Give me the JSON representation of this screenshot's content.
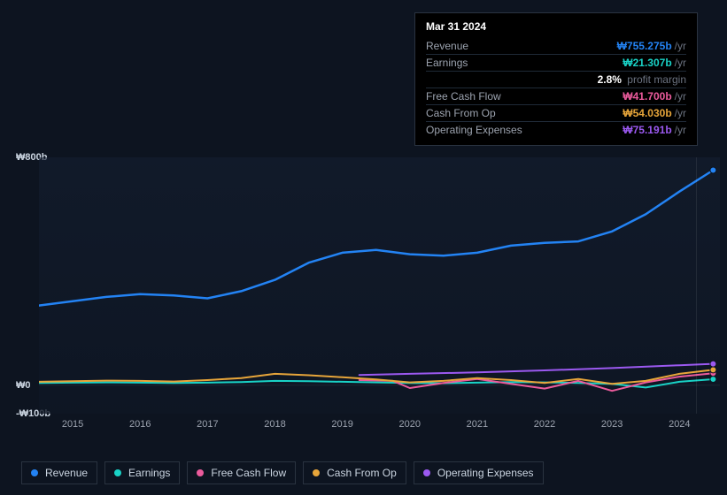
{
  "tooltip": {
    "date": "Mar 31 2024",
    "rows": [
      {
        "label": "Revenue",
        "value": "₩755.275b",
        "unit": "/yr",
        "color": "#2383f4"
      },
      {
        "label": "Earnings",
        "value": "₩21.307b",
        "unit": "/yr",
        "color": "#19d2c6",
        "sub_value": "2.8%",
        "sub_label": "profit margin"
      },
      {
        "label": "Free Cash Flow",
        "value": "₩41.700b",
        "unit": "/yr",
        "color": "#eb5b9c"
      },
      {
        "label": "Cash From Op",
        "value": "₩54.030b",
        "unit": "/yr",
        "color": "#e7a53a"
      },
      {
        "label": "Operating Expenses",
        "value": "₩75.191b",
        "unit": "/yr",
        "color": "#9b59f0"
      }
    ]
  },
  "chart": {
    "type": "line",
    "background_color": "#0d1420",
    "grid_color": "#1c2532",
    "label_fontsize": 11,
    "ylim": [
      -100,
      800
    ],
    "yticks": [
      {
        "v": 800,
        "label": "₩800b"
      },
      {
        "v": 0,
        "label": "₩0"
      },
      {
        "v": -100,
        "label": "-₩100b"
      }
    ],
    "xlim": [
      2014.5,
      2024.6
    ],
    "xticks": [
      2015,
      2016,
      2017,
      2018,
      2019,
      2020,
      2021,
      2022,
      2023,
      2024
    ],
    "marker_x": 2024.25,
    "marker_color": "rgba(255,255,255,0.08)",
    "line_width": 2,
    "series": [
      {
        "name": "Revenue",
        "color": "#2383f4",
        "line_width": 2.5,
        "x": [
          2014.5,
          2015,
          2015.5,
          2016,
          2016.5,
          2017,
          2017.5,
          2018,
          2018.5,
          2019,
          2019.5,
          2020,
          2020.5,
          2021,
          2021.5,
          2022,
          2022.5,
          2023,
          2023.5,
          2024,
          2024.5
        ],
        "y": [
          280,
          295,
          310,
          320,
          315,
          305,
          330,
          370,
          430,
          465,
          475,
          460,
          455,
          465,
          490,
          500,
          505,
          540,
          600,
          680,
          755
        ]
      },
      {
        "name": "Earnings",
        "color": "#19d2c6",
        "x": [
          2014.5,
          2015,
          2015.5,
          2016,
          2016.5,
          2017,
          2017.5,
          2018,
          2018.5,
          2019,
          2019.5,
          2020,
          2020.5,
          2021,
          2021.5,
          2022,
          2022.5,
          2023,
          2023.5,
          2024,
          2024.5
        ],
        "y": [
          8,
          9,
          10,
          9,
          8,
          9,
          11,
          15,
          14,
          12,
          10,
          8,
          7,
          9,
          11,
          10,
          8,
          5,
          -8,
          12,
          21
        ]
      },
      {
        "name": "Free Cash Flow",
        "color": "#eb5b9c",
        "x": [
          2019.25,
          2019.75,
          2020,
          2020.5,
          2021,
          2021.5,
          2022,
          2022.5,
          2023,
          2023.5,
          2024,
          2024.5
        ],
        "y": [
          18,
          15,
          -10,
          8,
          22,
          5,
          -12,
          15,
          -20,
          10,
          30,
          42
        ]
      },
      {
        "name": "Cash From Op",
        "color": "#e7a53a",
        "x": [
          2014.5,
          2015,
          2015.5,
          2016,
          2016.5,
          2017,
          2017.5,
          2018,
          2018.5,
          2019,
          2019.5,
          2020,
          2020.5,
          2021,
          2021.5,
          2022,
          2022.5,
          2023,
          2023.5,
          2024,
          2024.5
        ],
        "y": [
          12,
          14,
          16,
          15,
          13,
          18,
          25,
          40,
          35,
          28,
          20,
          10,
          15,
          25,
          18,
          8,
          22,
          5,
          15,
          40,
          54
        ]
      },
      {
        "name": "Operating Expenses",
        "color": "#9b59f0",
        "x": [
          2019.25,
          2020,
          2021,
          2022,
          2023,
          2024,
          2024.5
        ],
        "y": [
          36,
          40,
          45,
          52,
          60,
          70,
          75
        ]
      }
    ]
  },
  "legend": {
    "items": [
      {
        "label": "Revenue",
        "color": "#2383f4"
      },
      {
        "label": "Earnings",
        "color": "#19d2c6"
      },
      {
        "label": "Free Cash Flow",
        "color": "#eb5b9c"
      },
      {
        "label": "Cash From Op",
        "color": "#e7a53a"
      },
      {
        "label": "Operating Expenses",
        "color": "#9b59f0"
      }
    ]
  }
}
